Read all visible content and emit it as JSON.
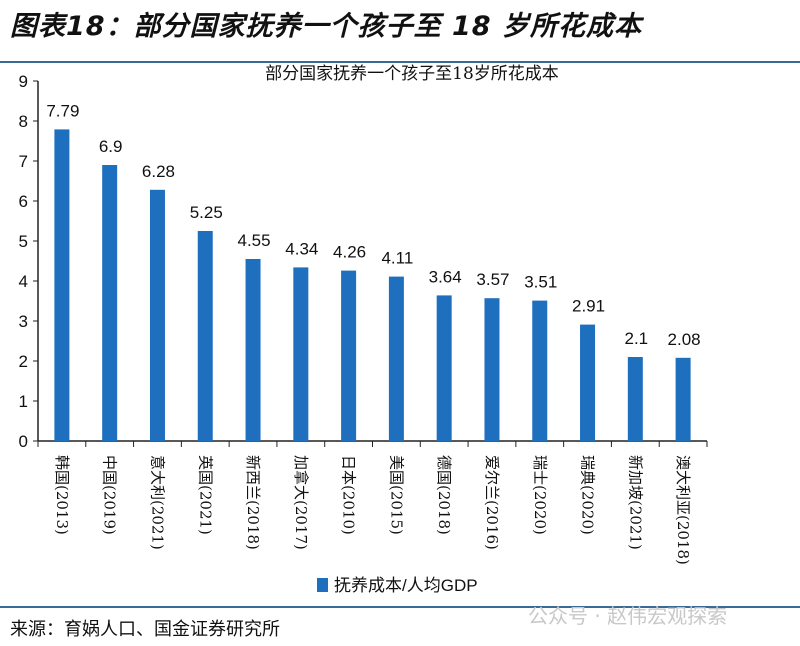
{
  "figure_title": "图表18：部分国家抚养一个孩子至 18 岁所花成本",
  "source": "来源：育娲人口、国金证券研究所",
  "watermark": "公众号 · 赵伟宏观探索",
  "chart_data": {
    "type": "bar",
    "title": "部分国家抚养一个孩子至18岁所花成本",
    "categories": [
      "韩国(2013)",
      "中国(2019)",
      "意大利(2021)",
      "英国(2021)",
      "新西兰(2018)",
      "加拿大(2017)",
      "日本(2010)",
      "美国(2015)",
      "德国(2018)",
      "爱尔兰(2016)",
      "瑞士(2020)",
      "瑞典(2020)",
      "新加坡(2021)",
      "澳大利亚(2018)"
    ],
    "series": [
      {
        "name": "抚养成本/人均GDP",
        "values": [
          7.79,
          6.9,
          6.28,
          5.25,
          4.55,
          4.34,
          4.26,
          4.11,
          3.64,
          3.57,
          3.51,
          2.91,
          2.1,
          2.08
        ],
        "color": "#1f6fbf"
      }
    ],
    "data_labels": [
      "7.79",
      "6.9",
      "6.28",
      "5.25",
      "4.55",
      "4.34",
      "4.26",
      "4.11",
      "3.64",
      "3.57",
      "3.51",
      "2.91",
      "2.1",
      "2.08"
    ],
    "yticks": [
      "0",
      "1",
      "2",
      "3",
      "4",
      "5",
      "6",
      "7",
      "8",
      "9"
    ],
    "ylim": [
      0,
      9
    ],
    "grid": false,
    "legend_position": "bottom"
  }
}
